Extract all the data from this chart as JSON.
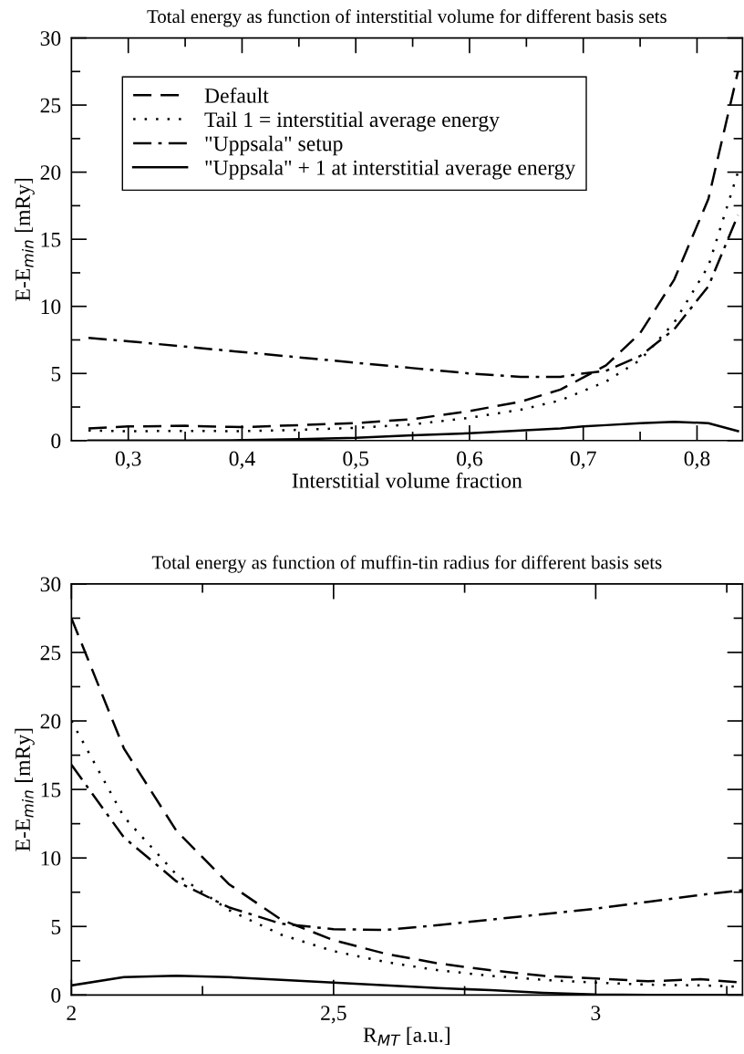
{
  "chart_data": [
    {
      "type": "line",
      "title": "Total energy as function of interstitial volume for different basis sets",
      "xlabel": "Interstitial volume fraction",
      "ylabel": "E-E$_{min}$ [mRy]",
      "x": [
        0.265,
        0.3,
        0.35,
        0.4,
        0.45,
        0.5,
        0.55,
        0.6,
        0.645,
        0.68,
        0.7,
        0.72,
        0.75,
        0.78,
        0.81,
        0.836
      ],
      "series": [
        {
          "name": "Default",
          "color": "#000000",
          "line_style": "dashed",
          "values": [
            0.9,
            1.05,
            1.1,
            1.0,
            1.15,
            1.3,
            1.6,
            2.2,
            2.9,
            3.8,
            4.7,
            5.6,
            8.0,
            12.0,
            18.0,
            27.5
          ]
        },
        {
          "name": "Tail 1 = interstitial average energy",
          "color": "#000000",
          "line_style": "dotted",
          "values": [
            0.75,
            0.7,
            0.72,
            0.7,
            0.8,
            0.95,
            1.2,
            1.7,
            2.3,
            3.0,
            3.7,
            4.4,
            6.0,
            8.8,
            13.0,
            20.0
          ]
        },
        {
          "name": "\"Uppsala\" setup",
          "color": "#000000",
          "line_style": "dashdot",
          "values": [
            7.65,
            7.4,
            7.0,
            6.6,
            6.2,
            5.8,
            5.4,
            5.0,
            4.75,
            4.75,
            5.0,
            5.2,
            6.3,
            8.3,
            11.5,
            16.8
          ]
        },
        {
          "name": "\"Uppsala\" + 1 at interstitial average energy",
          "color": "#000000",
          "line_style": "solid",
          "values": [
            0.0,
            0.0,
            0.0,
            0.03,
            0.1,
            0.2,
            0.4,
            0.55,
            0.75,
            0.9,
            1.05,
            1.15,
            1.3,
            1.4,
            1.3,
            0.7
          ]
        }
      ],
      "xlim": [
        0.25,
        0.84
      ],
      "ylim": [
        0,
        30
      ],
      "xticks": [
        {
          "value": 0.3,
          "label": "0,3"
        },
        {
          "value": 0.35,
          "label": null
        },
        {
          "value": 0.4,
          "label": "0,4"
        },
        {
          "value": 0.45,
          "label": null
        },
        {
          "value": 0.5,
          "label": "0,5"
        },
        {
          "value": 0.55,
          "label": null
        },
        {
          "value": 0.6,
          "label": "0,6"
        },
        {
          "value": 0.65,
          "label": null
        },
        {
          "value": 0.7,
          "label": "0,7"
        },
        {
          "value": 0.75,
          "label": null
        },
        {
          "value": 0.8,
          "label": "0,8"
        }
      ],
      "yticks": [
        0,
        {
          "value": 2.5,
          "label": null
        },
        5,
        {
          "value": 7.5,
          "label": null
        },
        10,
        {
          "value": 12.5,
          "label": null
        },
        15,
        {
          "value": 17.5,
          "label": null
        },
        20,
        {
          "value": 22.5,
          "label": null
        },
        25,
        {
          "value": 27.5,
          "label": null
        },
        30
      ],
      "legend": "top left",
      "grid": false,
      "marker": "none"
    },
    {
      "type": "line",
      "title": "Total energy as function of muffin-tin radius for different basis sets",
      "xlabel": "R$_{MT}$ [a.u.]",
      "ylabel": "E-E$_{min}$ [mRy]",
      "x": [
        2.0,
        2.1,
        2.2,
        2.3,
        2.4,
        2.5,
        2.6,
        2.7,
        2.8,
        2.9,
        3.0,
        3.1,
        3.2,
        3.28
      ],
      "series": [
        {
          "color": "#000000",
          "line_style": "dashed",
          "values": [
            27.5,
            18.0,
            12.0,
            8.1,
            5.5,
            4.0,
            3.0,
            2.3,
            1.8,
            1.4,
            1.2,
            1.0,
            1.15,
            0.9
          ]
        },
        {
          "color": "#000000",
          "line_style": "dotted",
          "values": [
            20.0,
            13.0,
            8.8,
            6.2,
            4.4,
            3.2,
            2.4,
            1.8,
            1.4,
            1.1,
            0.9,
            0.75,
            0.7,
            0.6
          ]
        },
        {
          "color": "#000000",
          "line_style": "dashdot",
          "values": [
            16.8,
            11.5,
            8.3,
            6.4,
            5.2,
            4.8,
            4.75,
            5.1,
            5.5,
            5.9,
            6.3,
            6.8,
            7.3,
            7.65
          ]
        },
        {
          "color": "#000000",
          "line_style": "solid",
          "values": [
            0.7,
            1.3,
            1.4,
            1.3,
            1.1,
            0.9,
            0.7,
            0.5,
            0.35,
            0.15,
            0.03,
            0.0,
            0.0,
            0.0
          ]
        }
      ],
      "xlim": [
        2,
        3.28
      ],
      "ylim": [
        0,
        30
      ],
      "xticks": [
        2,
        {
          "value": 2.25,
          "label": null
        },
        {
          "value": 2.5,
          "label": "2,5"
        },
        {
          "value": 2.75,
          "label": null
        },
        3,
        {
          "value": 3.25,
          "label": null
        }
      ],
      "yticks": [
        0,
        {
          "value": 2.5,
          "label": null
        },
        5,
        {
          "value": 7.5,
          "label": null
        },
        10,
        {
          "value": 12.5,
          "label": null
        },
        15,
        {
          "value": 17.5,
          "label": null
        },
        20,
        {
          "value": 22.5,
          "label": null
        },
        25,
        {
          "value": 27.5,
          "label": null
        },
        30
      ],
      "grid": false,
      "marker": "none"
    }
  ]
}
